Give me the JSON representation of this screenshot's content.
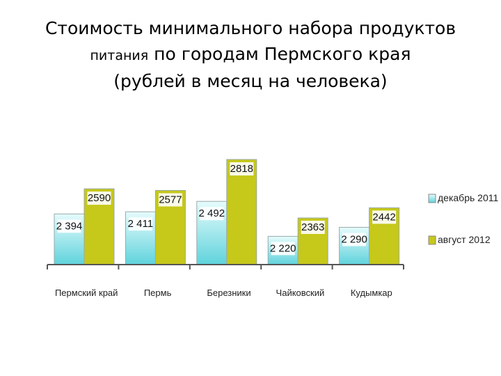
{
  "title": {
    "line1": "Стоимость минимального набора продуктов",
    "line2_small": "питания",
    "line2_rest": " по городам Пермского края",
    "line3": "(рублей в месяц на человека)"
  },
  "colors": {
    "series1": "#5fd3dc",
    "series1_light": "#e6fbfc",
    "series2": "#c6c81a",
    "series2_light": "#f2f3a8",
    "axis": "#555555"
  },
  "chart_data": {
    "type": "bar",
    "title": "Стоимость минимального набора продуктов питания по городам Пермского края (рублей в месяц на человека)",
    "categories": [
      "Пермский край",
      "Пермь",
      "Березники",
      "Чайковский",
      "Кудымкар"
    ],
    "series": [
      {
        "name": "декабрь 2011",
        "values": [
          2394,
          2411,
          2492,
          2220,
          2290
        ],
        "labels": [
          "2 394",
          "2 411",
          "2 492",
          "2 220",
          "2 290"
        ]
      },
      {
        "name": "август 2012",
        "values": [
          2590,
          2577,
          2818,
          2363,
          2442
        ],
        "labels": [
          "2590",
          "2577",
          "2818",
          "2363",
          "2442"
        ]
      }
    ],
    "ylim": [
      2000,
      2900
    ],
    "grid": false,
    "legend": "right"
  }
}
